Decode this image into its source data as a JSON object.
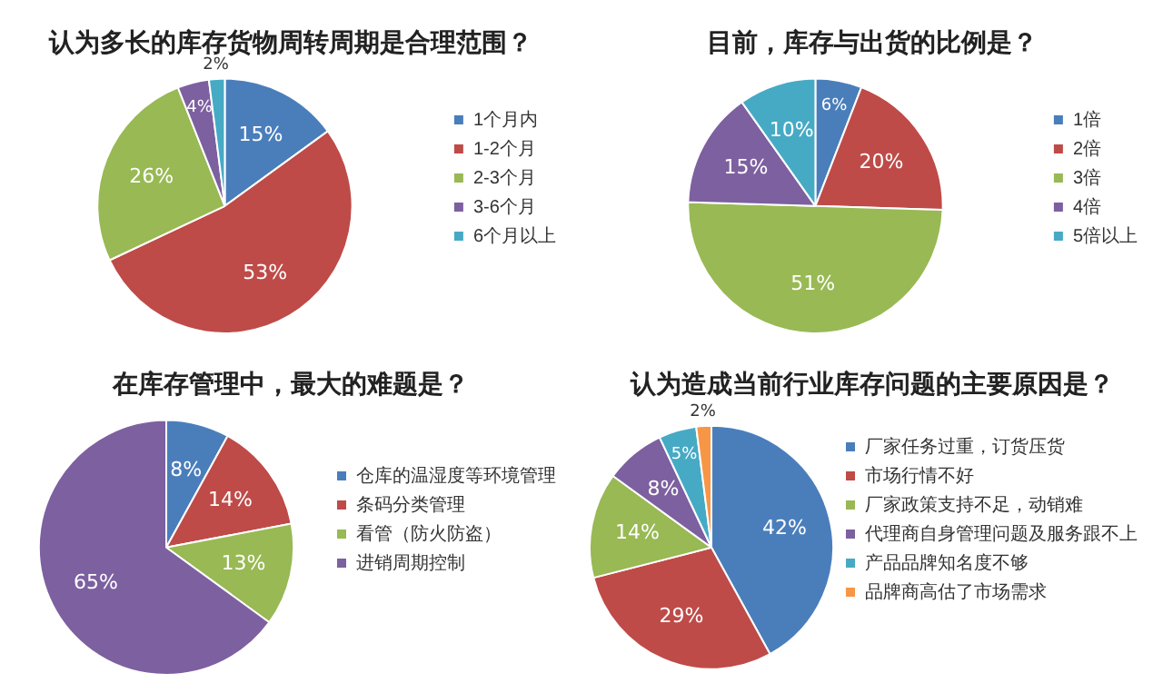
{
  "chart_data": [
    {
      "type": "pie",
      "title": "认为多长的库存货物周转周期是合理范围？",
      "categories": [
        "1个月内",
        "1-2个月",
        "2-3个月",
        "3-6个月",
        "6个月以上"
      ],
      "values": [
        15,
        53,
        26,
        4,
        2
      ],
      "value_labels": [
        "15%",
        "53%",
        "26%",
        "4%",
        "2%"
      ],
      "colors": [
        "#4a7ebb",
        "#be4b48",
        "#98b954",
        "#7d60a0",
        "#46aac5"
      ],
      "legend": "right"
    },
    {
      "type": "pie",
      "title": "目前，库存与出货的比例是？",
      "categories": [
        "1倍",
        "2倍",
        "3倍",
        "4倍",
        "5倍以上"
      ],
      "values": [
        6,
        20,
        51,
        15,
        10
      ],
      "value_labels": [
        "6%",
        "20%",
        "51%",
        "15%",
        "10%"
      ],
      "colors": [
        "#4a7ebb",
        "#be4b48",
        "#98b954",
        "#7d60a0",
        "#46aac5"
      ],
      "legend": "right"
    },
    {
      "type": "pie",
      "title": "在库存管理中，最大的难题是？",
      "categories": [
        "仓库的温湿度等环境管理",
        "条码分类管理",
        "看管（防火防盗）",
        "进销周期控制"
      ],
      "values": [
        8,
        14,
        13,
        65
      ],
      "value_labels": [
        "8%",
        "14%",
        "13%",
        "65%"
      ],
      "colors": [
        "#4a7ebb",
        "#be4b48",
        "#98b954",
        "#7d60a0"
      ],
      "legend": "right"
    },
    {
      "type": "pie",
      "title": "认为造成当前行业库存问题的主要原因是？",
      "categories": [
        "厂家任务过重，订货压货",
        "市场行情不好",
        "厂家政策支持不足，动销难",
        "代理商自身管理问题及服务跟不上",
        "产品品牌知名度不够",
        "品牌商高估了市场需求"
      ],
      "values": [
        42,
        29,
        14,
        8,
        5,
        2
      ],
      "value_labels": [
        "42%",
        "29%",
        "14%",
        "8%",
        "5%",
        "2%"
      ],
      "colors": [
        "#4a7ebb",
        "#be4b48",
        "#98b954",
        "#7d60a0",
        "#46aac5",
        "#f79646"
      ],
      "legend": "right"
    }
  ]
}
